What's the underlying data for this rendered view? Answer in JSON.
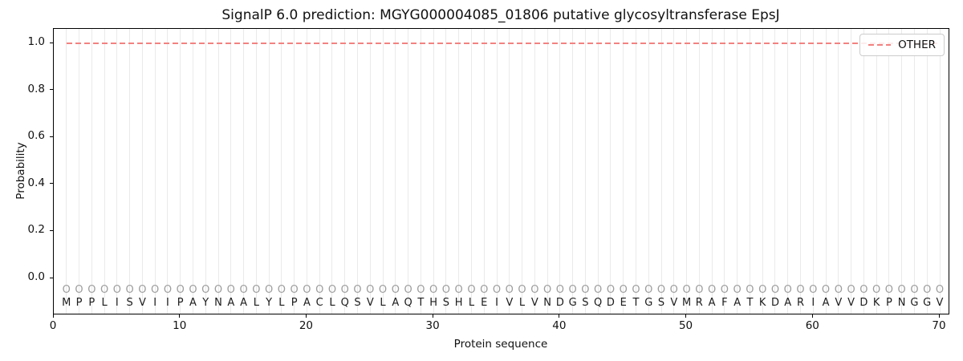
{
  "figure": {
    "title": "SignalP 6.0 prediction: MGYG000004085_01806 putative glycosyltransferase EpsJ",
    "xlabel": "Protein sequence",
    "ylabel": "Probability"
  },
  "legend": {
    "position": "upper right",
    "entries": [
      {
        "label": "OTHER",
        "color": "#f28280",
        "linestyle": "dashed"
      }
    ]
  },
  "chart_data": {
    "type": "line",
    "title": "SignalP 6.0 prediction: MGYG000004085_01806 putative glycosyltransferase EpsJ",
    "xlabel": "Protein sequence",
    "ylabel": "Probability",
    "xticks": [
      0,
      10,
      20,
      30,
      40,
      50,
      60,
      70
    ],
    "yticks": [
      0.0,
      0.2,
      0.4,
      0.6,
      0.8,
      1.0
    ],
    "xlim": [
      0,
      70.85
    ],
    "ylim": [
      -0.16,
      1.06
    ],
    "grid": "vertical gridline at every residue position, no horizontal grid",
    "series": [
      {
        "name": "OTHER",
        "color": "#f28280",
        "linestyle": "dashed",
        "x_start": 1,
        "x_end": 70,
        "constant_y": 1.0
      }
    ],
    "sequence": "MPPLISVIIPAYNAALYLPACLQSVLAQTHSHLEIVLVNDGSQDETGSVMRAFATKDARIAVVDKPNGGV",
    "per_residue_marker": "O",
    "marker_color": "#9d9d9d",
    "marker_y": -0.05,
    "sequence_y": -0.105,
    "gridline_color": "#eaeaea"
  }
}
